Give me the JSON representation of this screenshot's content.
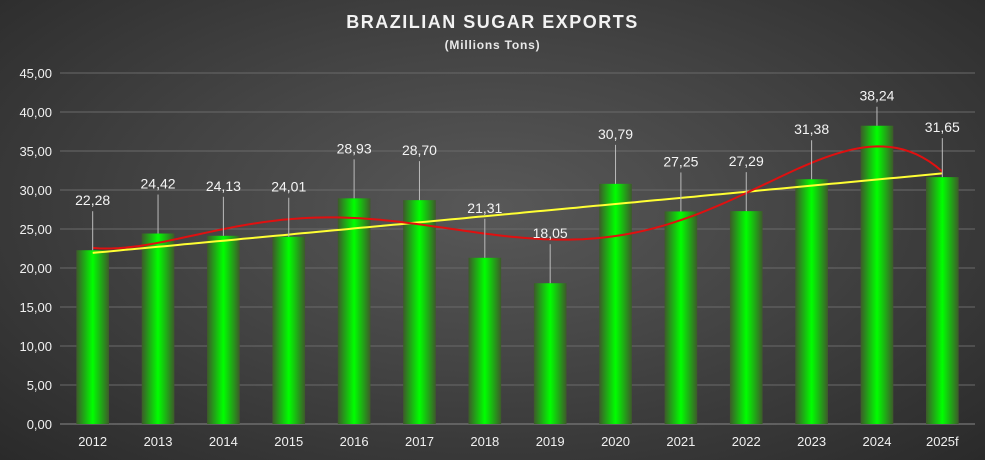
{
  "chart_data": {
    "type": "bar",
    "title": "BRAZILIAN SUGAR EXPORTS",
    "subtitle": "(Millions Tons)",
    "xlabel": "",
    "ylabel": "",
    "categories": [
      "2012",
      "2013",
      "2014",
      "2015",
      "2016",
      "2017",
      "2018",
      "2019",
      "2020",
      "2021",
      "2022",
      "2023",
      "2024",
      "2025f"
    ],
    "values": [
      22.28,
      24.42,
      24.13,
      24.01,
      28.93,
      28.7,
      21.31,
      18.05,
      30.79,
      27.25,
      27.29,
      31.38,
      38.24,
      31.65
    ],
    "data_labels": [
      "22,28",
      "24,42",
      "24,13",
      "24,01",
      "28,93",
      "28,70",
      "21,31",
      "18,05",
      "30,79",
      "27,25",
      "27,29",
      "31,38",
      "38,24",
      "31,65"
    ],
    "ylim": [
      0,
      45
    ],
    "yticks": [
      0,
      5,
      10,
      15,
      20,
      25,
      30,
      35,
      40,
      45
    ],
    "ytick_labels": [
      "0,00",
      "5,00",
      "10,00",
      "15,00",
      "20,00",
      "25,00",
      "30,00",
      "35,00",
      "40,00",
      "45,00"
    ],
    "grid": true,
    "legend": "none",
    "trendlines": [
      {
        "type": "linear",
        "color": "#ffff33"
      },
      {
        "type": "polynomial",
        "order": 5,
        "color": "#e01010"
      }
    ],
    "colors": {
      "bar_center": "#00ff00",
      "bar_edge": "#3d5a2a"
    }
  }
}
